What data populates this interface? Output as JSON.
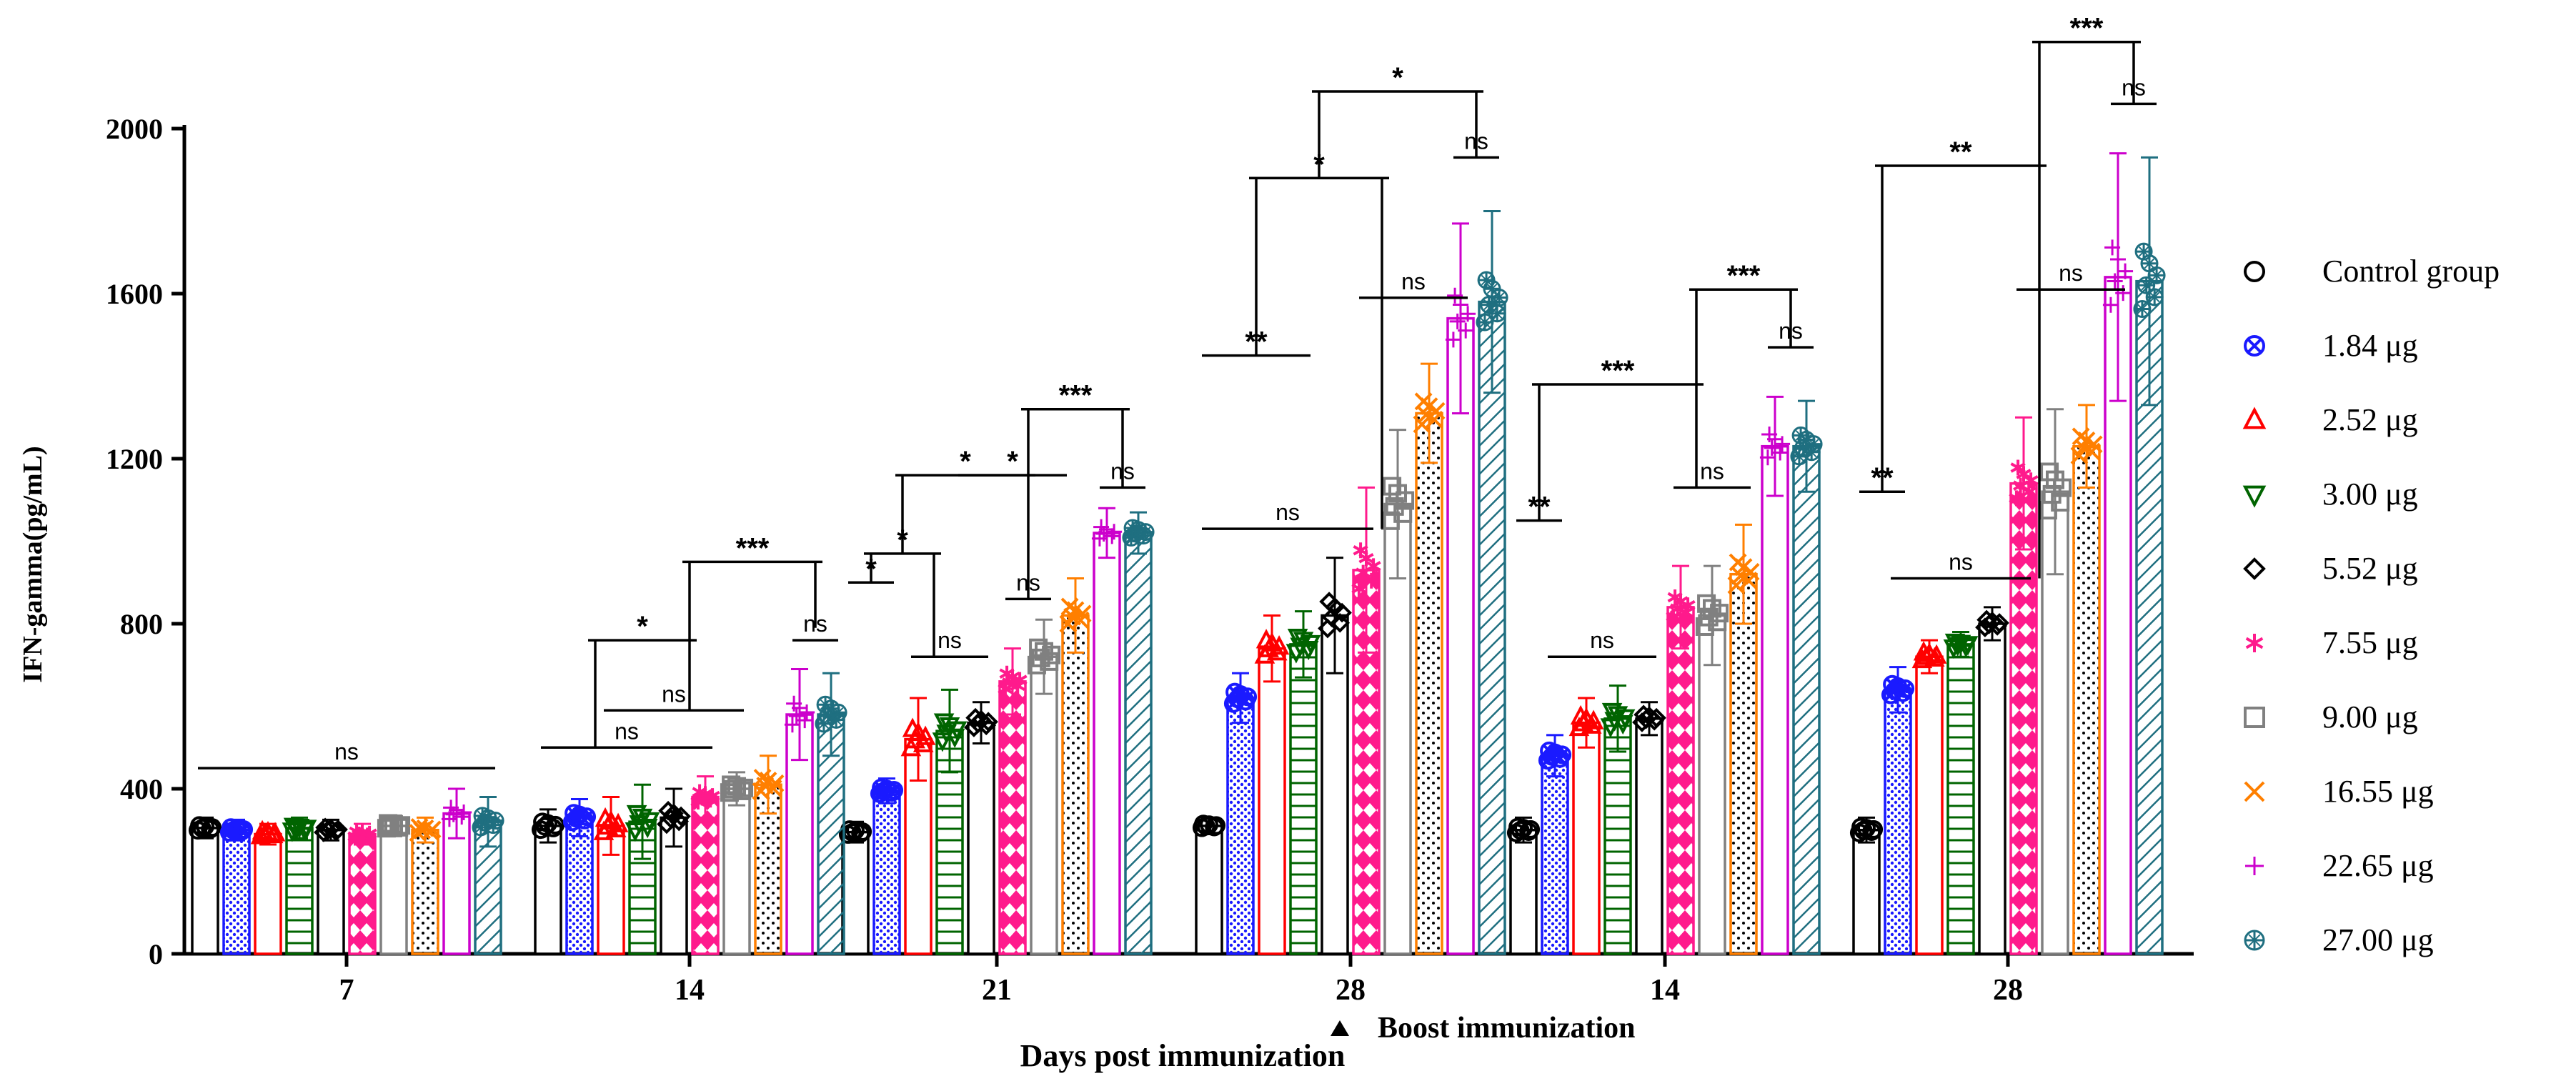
{
  "chart_data": {
    "type": "bar",
    "ylabel": "IFN-gamma(pg/mL)",
    "xlabel": "Days post immunization",
    "ylim": [
      0,
      2000
    ],
    "yticks": [
      0,
      400,
      800,
      1200,
      1600,
      2000
    ],
    "annotation": "Boost immunization",
    "groups": [
      "7",
      "14",
      "21",
      "28",
      "14",
      "28"
    ],
    "series": [
      {
        "name": "Control group",
        "color": "#000000",
        "marker": "circle",
        "fill": "none",
        "values": [
          305,
          310,
          295,
          310,
          300,
          300
        ],
        "errors": [
          25,
          40,
          25,
          20,
          30,
          30
        ]
      },
      {
        "name": "1.84 μg",
        "color": "#1a1aff",
        "marker": "circle-x",
        "fill": "dots",
        "values": [
          300,
          330,
          395,
          620,
          480,
          640
        ],
        "errors": [
          25,
          45,
          30,
          60,
          50,
          55
        ]
      },
      {
        "name": "2.52 μg",
        "color": "#ff0000",
        "marker": "triangle-up",
        "fill": "none",
        "values": [
          290,
          310,
          520,
          740,
          560,
          720
        ],
        "errors": [
          25,
          70,
          100,
          80,
          60,
          40
        ]
      },
      {
        "name": "3.00 μg",
        "color": "#006400",
        "marker": "triangle-down",
        "fill": "hlines",
        "values": [
          305,
          320,
          540,
          750,
          570,
          750
        ],
        "errors": [
          25,
          90,
          100,
          80,
          80,
          30
        ]
      },
      {
        "name": "5.52 μg",
        "color": "#000000",
        "marker": "diamond",
        "fill": "none",
        "values": [
          300,
          330,
          560,
          820,
          570,
          800
        ],
        "errors": [
          25,
          70,
          50,
          140,
          40,
          40
        ]
      },
      {
        "name": "7.55 μg",
        "color": "#ff1a8c",
        "marker": "asterisk",
        "fill": "zigzag",
        "values": [
          290,
          380,
          660,
          930,
          840,
          1140
        ],
        "errors": [
          25,
          50,
          80,
          200,
          100,
          160
        ]
      },
      {
        "name": "9.00 μg",
        "color": "#808080",
        "marker": "square",
        "fill": "none",
        "values": [
          310,
          400,
          720,
          1090,
          820,
          1120
        ],
        "errors": [
          25,
          40,
          90,
          180,
          120,
          200
        ]
      },
      {
        "name": "16.55 μg",
        "color": "#ff7f00",
        "marker": "x",
        "fill": "dots-sparse",
        "values": [
          300,
          410,
          820,
          1310,
          920,
          1230
        ],
        "errors": [
          30,
          70,
          90,
          120,
          120,
          100
        ]
      },
      {
        "name": "22.65 μg",
        "color": "#cc00cc",
        "marker": "plus",
        "fill": "none",
        "values": [
          340,
          580,
          1020,
          1540,
          1230,
          1640
        ],
        "errors": [
          60,
          110,
          60,
          230,
          120,
          300
        ]
      },
      {
        "name": "27.00 μg",
        "color": "#1f6f80",
        "marker": "circle-plus",
        "fill": "diagonal",
        "values": [
          320,
          580,
          1020,
          1580,
          1230,
          1630
        ],
        "errors": [
          60,
          100,
          50,
          220,
          110,
          300
        ]
      }
    ],
    "significance": [
      {
        "label": "ns",
        "group": 0,
        "from": 0,
        "to": 9,
        "level": 450
      },
      {
        "label": "ns",
        "group": 1,
        "from": 0,
        "to": 5,
        "level": 500
      },
      {
        "label": "ns",
        "group": 1,
        "from": 2,
        "to": 6,
        "level": 590
      },
      {
        "label": "ns",
        "group": 1,
        "from": 8,
        "to": 9,
        "level": 760
      },
      {
        "label": "*",
        "group": 1,
        "from": 1.5,
        "to": 4.5,
        "level": 760,
        "leftStem": 500,
        "rightStem": 590
      },
      {
        "label": "***",
        "group": 1,
        "from": 4.5,
        "to": 8.5,
        "level": 950,
        "leftStem": 760,
        "rightStem": 790
      },
      {
        "label": "*",
        "group": 2,
        "from": 0,
        "to": 1,
        "level": 900
      },
      {
        "label": "*",
        "group": 2,
        "from": 0.5,
        "to": 2.5,
        "level": 970,
        "leftStem": 900,
        "rightStem": 720
      },
      {
        "label": "ns",
        "group": 2,
        "from": 2,
        "to": 4,
        "level": 720
      },
      {
        "label": "*",
        "group": 2,
        "from": 1.5,
        "to": 5.5,
        "level": 1160,
        "leftStem": 970,
        "rightStem": 860
      },
      {
        "label": "ns",
        "group": 2,
        "from": 5,
        "to": 6,
        "level": 860
      },
      {
        "label": "*",
        "group": 2,
        "from": 3.5,
        "to": 6.5,
        "level": 1160,
        "leftStem": 1160,
        "rightStem": 1160
      },
      {
        "label": "***",
        "group": 2,
        "from": 5.5,
        "to": 8.5,
        "level": 1320,
        "leftStem": 1160,
        "rightStem": 1130
      },
      {
        "label": "ns",
        "group": 2,
        "from": 8,
        "to": 9,
        "level": 1130
      },
      {
        "label": "**",
        "group": 3,
        "from": 0,
        "to": 3,
        "level": 1450
      },
      {
        "label": "ns",
        "group": 3,
        "from": 0,
        "to": 5,
        "level": 1030
      },
      {
        "label": "*",
        "group": 3,
        "from": 1.5,
        "to": 5.5,
        "level": 1880,
        "leftStem": 1450,
        "rightStem": 1030
      },
      {
        "label": "ns",
        "group": 3,
        "from": 5,
        "to": 8,
        "level": 1590
      },
      {
        "label": "*",
        "group": 3,
        "from": 3.5,
        "to": 8.5,
        "level": 2090,
        "leftStem": 1880,
        "rightStem": 1930
      },
      {
        "label": "ns",
        "group": 3,
        "from": 8,
        "to": 9,
        "level": 1930
      },
      {
        "label": "**",
        "group": 4,
        "from": 0,
        "to": 1,
        "level": 1050
      },
      {
        "label": "ns",
        "group": 4,
        "from": 1,
        "to": 4,
        "level": 720
      },
      {
        "label": "***",
        "group": 4,
        "from": 0.5,
        "to": 5.5,
        "level": 1380,
        "leftStem": 1050,
        "rightStem": 1130
      },
      {
        "label": "ns",
        "group": 4,
        "from": 5,
        "to": 7,
        "level": 1130
      },
      {
        "label": "***",
        "group": 4,
        "from": 5.5,
        "to": 8.5,
        "level": 1610,
        "leftStem": 1380,
        "rightStem": 1470
      },
      {
        "label": "ns",
        "group": 4,
        "from": 8,
        "to": 9,
        "level": 1470
      },
      {
        "label": "**",
        "group": 5,
        "from": 0,
        "to": 1,
        "level": 1120
      },
      {
        "label": "ns",
        "group": 5,
        "from": 1,
        "to": 5,
        "level": 910
      },
      {
        "label": "**",
        "group": 5,
        "from": 0.5,
        "to": 5.5,
        "level": 1910,
        "leftStem": 1120,
        "rightStem": 910
      },
      {
        "label": "ns",
        "group": 5,
        "from": 5,
        "to": 8,
        "level": 1610
      },
      {
        "label": "***",
        "group": 5,
        "from": 5.5,
        "to": 8.5,
        "level": 2210,
        "leftStem": 1910,
        "rightStem": 2060
      },
      {
        "label": "ns",
        "group": 5,
        "from": 8,
        "to": 9,
        "level": 2060
      }
    ]
  }
}
